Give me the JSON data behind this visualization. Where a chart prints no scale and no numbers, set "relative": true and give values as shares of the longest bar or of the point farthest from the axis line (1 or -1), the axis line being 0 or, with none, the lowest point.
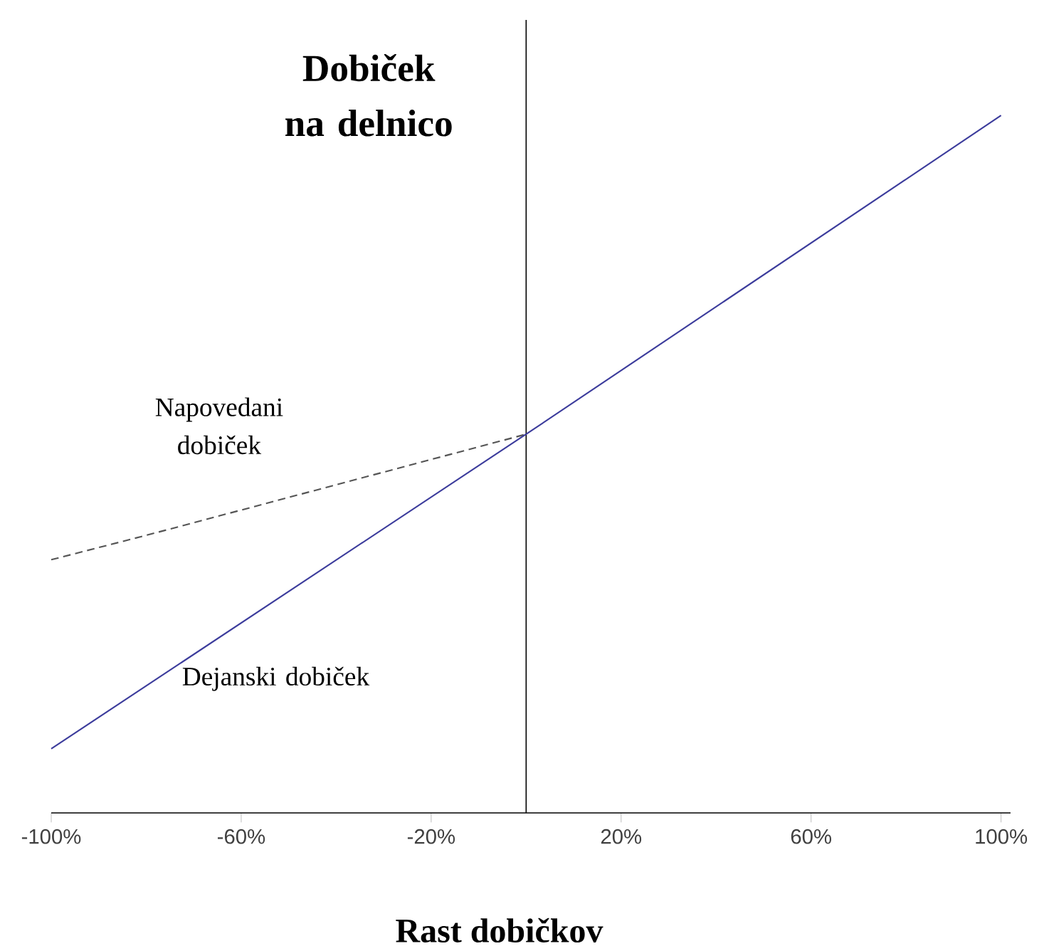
{
  "chart_data": {
    "type": "line",
    "title": "Dobiček na delnico",
    "xlabel": "Rast dobičkov",
    "relative": true,
    "xlim": [
      -100,
      102
    ],
    "xticks": [
      {
        "value": -100,
        "label": "-100%"
      },
      {
        "value": -60,
        "label": "-60%"
      },
      {
        "value": -20,
        "label": "-20%"
      },
      {
        "value": 20,
        "label": "20%"
      },
      {
        "value": 60,
        "label": "60%"
      },
      {
        "value": 100,
        "label": "100%"
      }
    ],
    "series": [
      {
        "name": "Napovedani dobiček",
        "color": "#555555",
        "line_style": "dashed",
        "x": [
          -100,
          -80,
          0
        ],
        "values": [
          0.363,
          0.398,
          0.543
        ]
      },
      {
        "name": "Dejanski dobiček",
        "color": "#3c3c9c",
        "line_style": "solid",
        "x": [
          -100,
          0,
          100
        ],
        "values": [
          0.092,
          0.543,
          1
        ]
      }
    ],
    "legend": false,
    "grid": false
  }
}
